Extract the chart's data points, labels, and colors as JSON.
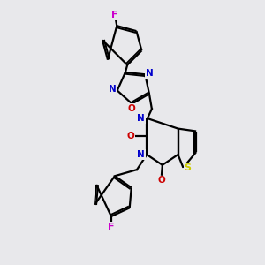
{
  "bg_color": "#e8e8eb",
  "atom_colors": {
    "C": "#000000",
    "N": "#0000cc",
    "O": "#cc0000",
    "S": "#cccc00",
    "F": "#cc00cc"
  },
  "bond_color": "#000000",
  "lw": 1.6,
  "doff": 0.055
}
